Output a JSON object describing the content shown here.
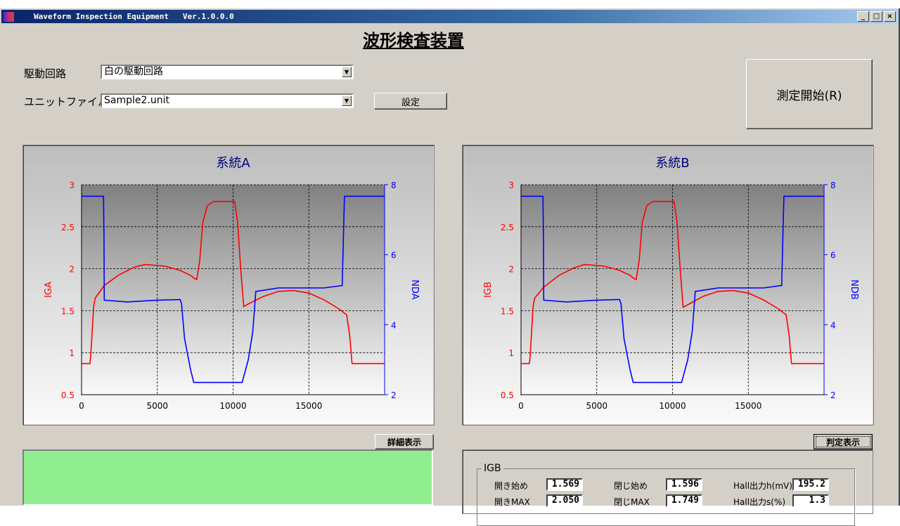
{
  "window": {
    "title": "Waveform Inspection Equipment   Ver.1.0.0.0",
    "minimize": "_",
    "maximize": "□",
    "close": "×"
  },
  "heading": "波形検査装置",
  "drive_circuit": {
    "label": "駆動回路",
    "value": "白の駆動回路"
  },
  "unit_file": {
    "label": "ユニットファイル",
    "value": "Sample2.unit"
  },
  "settings_button": "設定",
  "start_button": "測定開始(R)",
  "detail_button": "詳細表示",
  "judge_button": "判定表示",
  "result_color": "#90ee90",
  "group": {
    "title": "IGB",
    "fields": [
      {
        "label": "開き始め",
        "value": "1.569"
      },
      {
        "label": "閉じ始め",
        "value": "1.596"
      },
      {
        "label": "Hall出力h(mV)",
        "value": "195.2"
      },
      {
        "label": "開きMAX",
        "value": "2.050"
      },
      {
        "label": "閉じMAX",
        "value": "1.749"
      },
      {
        "label": "Hall出力s(%)",
        "value": "1.3"
      }
    ]
  },
  "chart_data": [
    {
      "type": "line",
      "title": "系統A",
      "ylabel": "IGA",
      "y2label": "NDA",
      "xlim": [
        0,
        20000
      ],
      "ylim": [
        0.5,
        3
      ],
      "y2lim": [
        2,
        8
      ],
      "xticks": [
        "0",
        "5000",
        "10000",
        "15000"
      ],
      "yticks": [
        "0.5",
        "1",
        "1.5",
        "2",
        "2.5",
        "3"
      ],
      "y2ticks": [
        "2",
        "4",
        "6",
        "8"
      ],
      "grid": true,
      "colors": {
        "left": "#ff0000",
        "right": "#0000ff",
        "title": "#000080"
      },
      "series": [
        {
          "axis": "left",
          "x": [
            0,
            550,
            600,
            700,
            800,
            900,
            1500,
            2500,
            3500,
            4200,
            5500,
            6500,
            7200,
            7400,
            7600,
            7800,
            8000,
            8300,
            8700,
            10100,
            10300,
            10500,
            10700,
            11000,
            12000,
            13000,
            14000,
            15000,
            16000,
            17000,
            17500,
            17700,
            17850,
            20000
          ],
          "y": [
            0.87,
            0.87,
            0.95,
            1.25,
            1.55,
            1.65,
            1.8,
            1.93,
            2.02,
            2.05,
            2.03,
            1.98,
            1.92,
            1.89,
            1.87,
            2.1,
            2.55,
            2.75,
            2.8,
            2.8,
            2.55,
            2.0,
            1.55,
            1.58,
            1.67,
            1.73,
            1.74,
            1.71,
            1.63,
            1.52,
            1.45,
            1.2,
            0.87,
            0.87
          ]
        },
        {
          "axis": "right",
          "x": [
            0,
            1450,
            1480,
            1500,
            3000,
            5000,
            6500,
            6600,
            6800,
            7200,
            7400,
            10600,
            11000,
            11300,
            11500,
            13000,
            16000,
            17200,
            17300,
            17350,
            20000
          ],
          "y": [
            7.67,
            7.67,
            6.5,
            4.7,
            4.65,
            4.7,
            4.72,
            4.6,
            3.6,
            2.7,
            2.35,
            2.35,
            3.0,
            3.8,
            4.95,
            5.05,
            5.05,
            5.12,
            6.8,
            7.67,
            7.67
          ]
        }
      ]
    },
    {
      "type": "line",
      "title": "系統B",
      "ylabel": "IGB",
      "y2label": "NDB",
      "xlim": [
        0,
        20000
      ],
      "ylim": [
        0.5,
        3
      ],
      "y2lim": [
        2,
        8
      ],
      "xticks": [
        "0",
        "5000",
        "10000",
        "15000"
      ],
      "yticks": [
        "0.5",
        "1",
        "1.5",
        "2",
        "2.5",
        "3"
      ],
      "y2ticks": [
        "2",
        "4",
        "6",
        "8"
      ],
      "grid": true,
      "colors": {
        "left": "#ff0000",
        "right": "#0000ff",
        "title": "#000080"
      },
      "series": [
        {
          "axis": "left",
          "x": [
            0,
            550,
            600,
            700,
            800,
            900,
            1500,
            2500,
            3500,
            4200,
            5500,
            6500,
            7200,
            7400,
            7600,
            7800,
            8000,
            8300,
            8700,
            10100,
            10300,
            10500,
            10700,
            11000,
            12000,
            13000,
            14000,
            15000,
            16000,
            17000,
            17500,
            17700,
            17850,
            20000
          ],
          "y": [
            0.87,
            0.87,
            0.95,
            1.25,
            1.55,
            1.65,
            1.78,
            1.92,
            2.01,
            2.05,
            2.03,
            1.98,
            1.92,
            1.89,
            1.87,
            2.1,
            2.55,
            2.75,
            2.8,
            2.8,
            2.55,
            2.0,
            1.54,
            1.57,
            1.67,
            1.73,
            1.74,
            1.71,
            1.63,
            1.52,
            1.45,
            1.2,
            0.87,
            0.87
          ]
        },
        {
          "axis": "right",
          "x": [
            0,
            1450,
            1480,
            1500,
            3000,
            5000,
            6500,
            6600,
            6800,
            7200,
            7400,
            10600,
            11000,
            11300,
            11500,
            13000,
            16000,
            17200,
            17300,
            17350,
            20000
          ],
          "y": [
            7.67,
            7.67,
            6.5,
            4.7,
            4.65,
            4.7,
            4.72,
            4.6,
            3.6,
            2.7,
            2.35,
            2.35,
            3.0,
            3.8,
            4.95,
            5.05,
            5.05,
            5.12,
            6.8,
            7.67,
            7.67
          ]
        }
      ]
    }
  ]
}
